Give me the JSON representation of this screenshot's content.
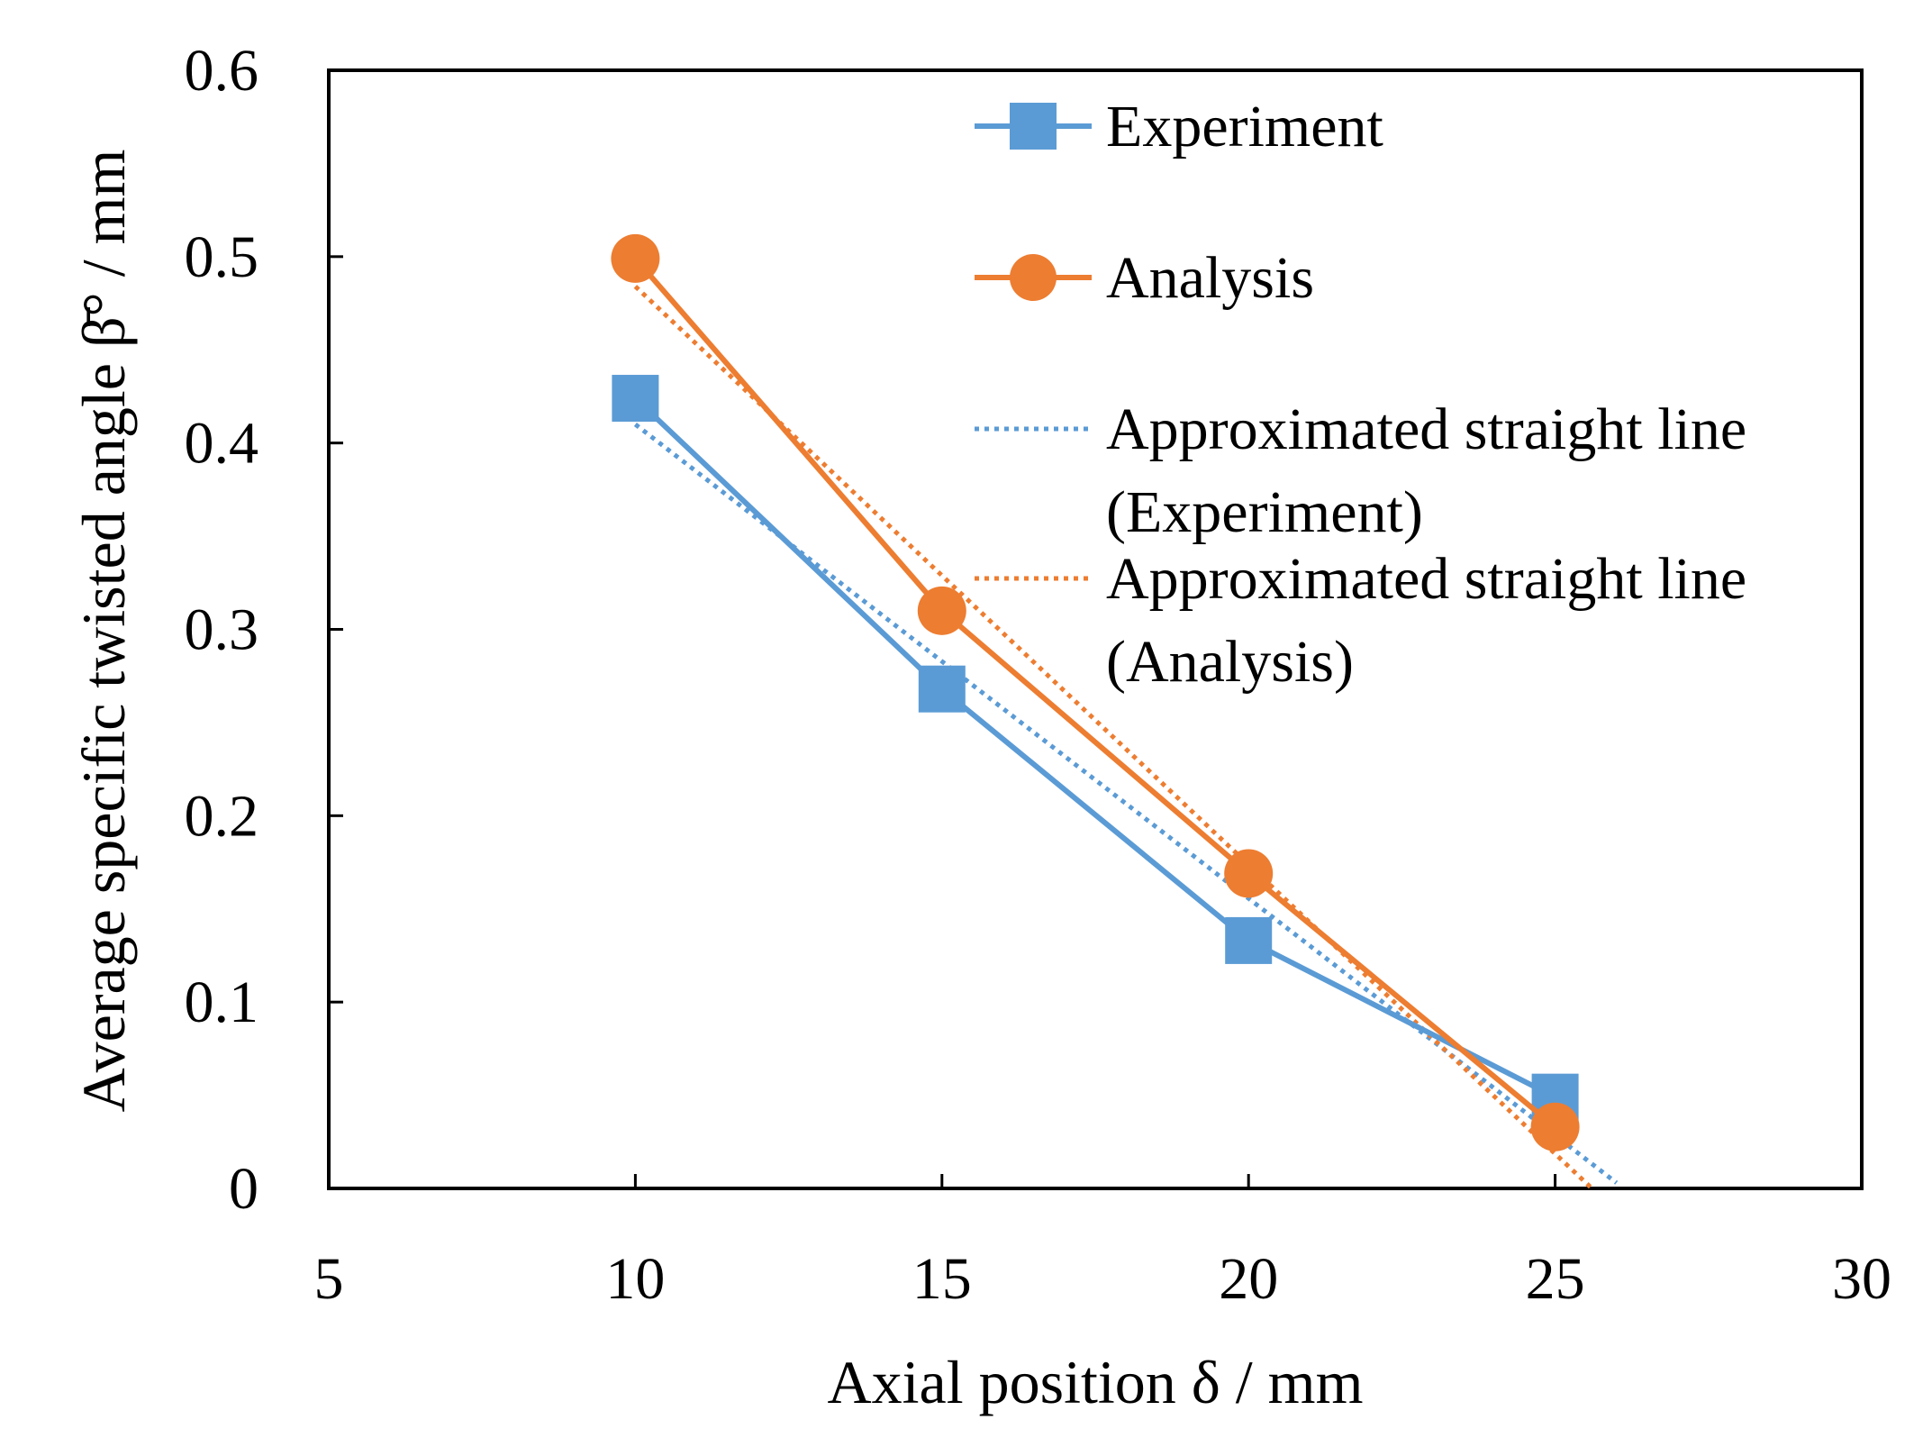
{
  "chart_data": {
    "type": "line",
    "xlabel": "Axial position δ / mm",
    "ylabel": "Average specific twisted angle β̄° / mm",
    "xlim": [
      5,
      30
    ],
    "ylim": [
      0,
      0.6
    ],
    "xticks": [
      "5",
      "10",
      "15",
      "20",
      "25",
      "30"
    ],
    "yticks": [
      "0",
      "0.1",
      "0.2",
      "0.3",
      "0.4",
      "0.5",
      "0.6"
    ],
    "grid": false,
    "legend_position": "top-right",
    "series": [
      {
        "name": "Experiment",
        "color": "#5B9BD5",
        "marker": "square",
        "style": "solid",
        "x": [
          10,
          15,
          20,
          25
        ],
        "y": [
          0.424,
          0.268,
          0.133,
          0.049
        ]
      },
      {
        "name": "Analysis",
        "color": "#ED7D31",
        "marker": "circle",
        "style": "solid",
        "x": [
          10,
          15,
          20,
          25
        ],
        "y": [
          0.499,
          0.31,
          0.169,
          0.033
        ]
      },
      {
        "name": "Approximated straight line (Experiment)",
        "color": "#5B9BD5",
        "marker": "none",
        "style": "dotted",
        "x": [
          10,
          26
        ],
        "y": [
          0.41,
          0.003
        ]
      },
      {
        "name": "Approximated straight line (Analysis)",
        "color": "#ED7D31",
        "marker": "none",
        "style": "dotted",
        "x": [
          10,
          25.6
        ],
        "y": [
          0.484,
          0.0
        ]
      }
    ],
    "legend_lines": [
      [
        "Experiment"
      ],
      [
        "Analysis"
      ],
      [
        "Approximated straight line",
        "(Experiment)"
      ],
      [
        "Approximated straight line",
        "(Analysis)"
      ]
    ]
  }
}
